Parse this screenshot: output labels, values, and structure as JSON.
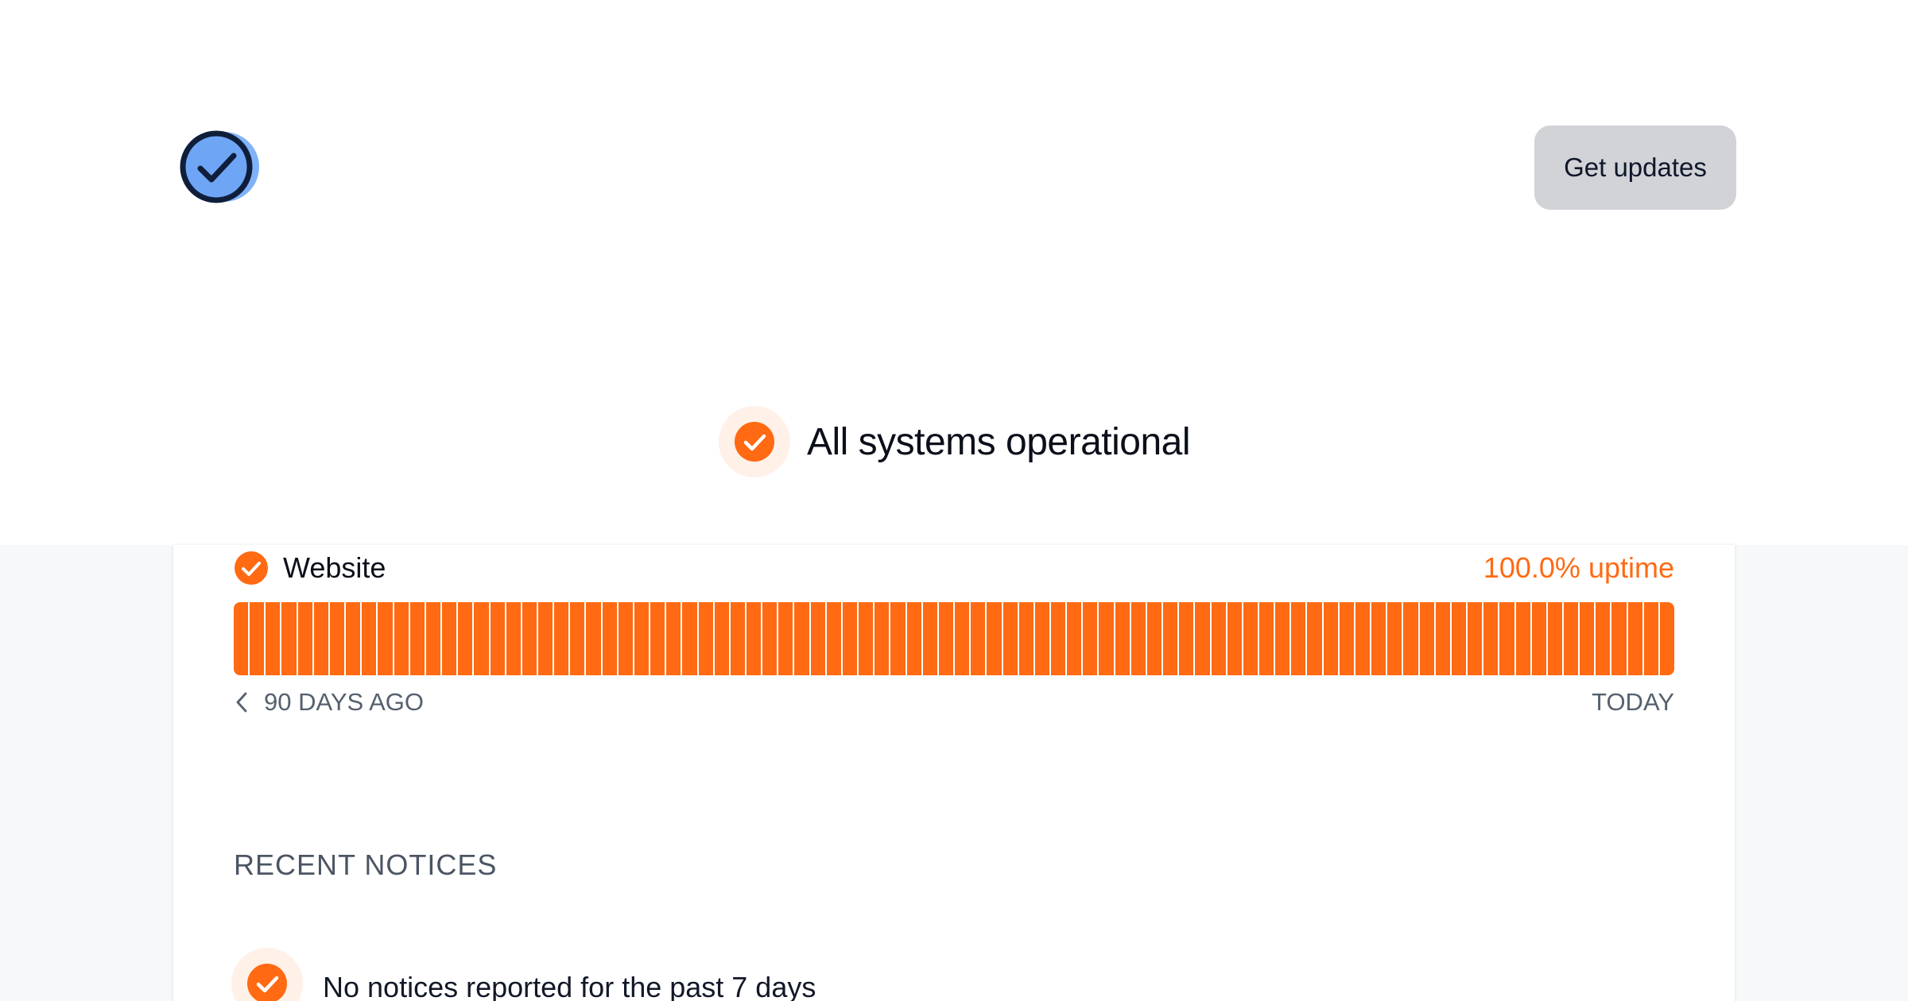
{
  "header": {
    "logo_icon": "check-circle-logo-icon",
    "updates_button_label": "Get updates"
  },
  "status": {
    "icon": "check-circle-icon",
    "title": "All systems operational",
    "accent_color": "#ff6a13"
  },
  "components": [
    {
      "name": "Website",
      "uptime_label": "100.0% uptime",
      "uptime_percent": 100.0,
      "day_count": 90,
      "range_start_label": "90 DAYS AGO",
      "range_end_label": "TODAY"
    }
  ],
  "notices": {
    "heading": "RECENT NOTICES",
    "items": [
      {
        "icon": "check-circle-icon",
        "text": "No notices reported for the past 7 days"
      }
    ]
  }
}
